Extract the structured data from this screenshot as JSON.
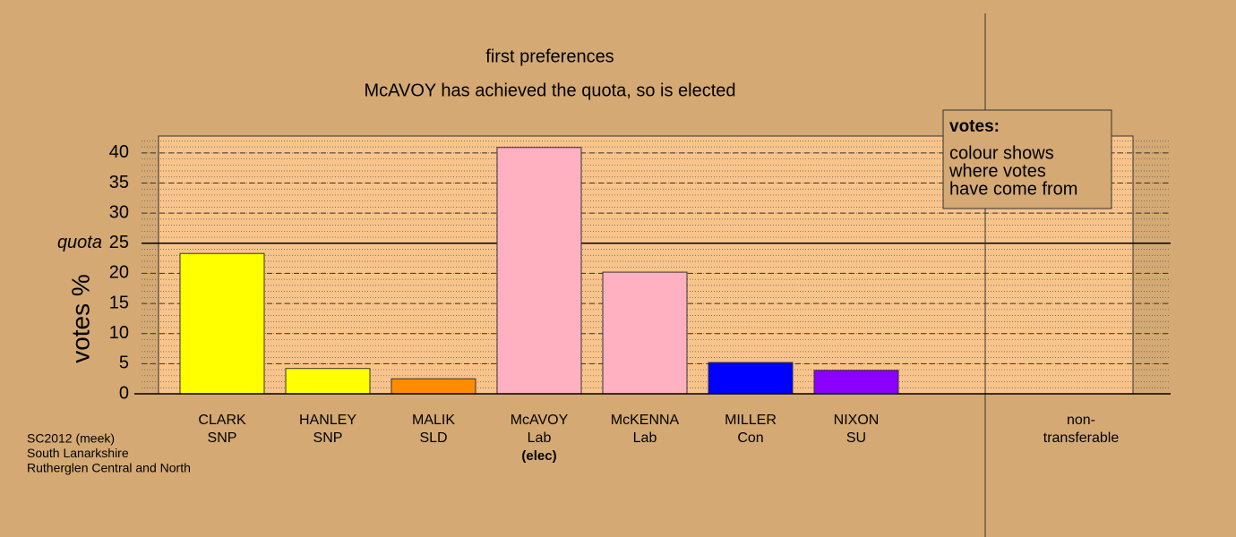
{
  "chart_data": {
    "type": "bar",
    "title": "first preferences",
    "subtitle": "McAVOY has achieved the quota, so is elected",
    "y_label": "votes %",
    "categories": [
      "CLARK",
      "HANLEY",
      "MALIK",
      "McAVOY",
      "McKENNA",
      "MILLER",
      "NIXON"
    ],
    "parties": [
      "SNP",
      "SNP",
      "SLD",
      "Lab",
      "Lab",
      "Con",
      "SU"
    ],
    "values": [
      23.3,
      4.2,
      2.5,
      40.9,
      20.2,
      5.2,
      3.9
    ],
    "colors": [
      "#ffff00",
      "#ffff00",
      "#ff8c00",
      "#ffb0c1",
      "#ffb0c1",
      "#0000ff",
      "#8b00ff"
    ],
    "elected": {
      "category": "McAVOY",
      "text": "(elec)"
    },
    "extra_category": [
      "non-",
      "transferable"
    ],
    "quota": {
      "value": 25,
      "label": "quota"
    },
    "ylim": [
      0,
      42.8
    ],
    "yticks": [
      0,
      5,
      10,
      15,
      20,
      25,
      30,
      35,
      40
    ],
    "minor_grid_step": 1,
    "grid": true,
    "legend": {
      "title": "votes:",
      "lines": [
        "colour shows",
        "where votes",
        "have come from"
      ]
    },
    "footer": [
      "SC2012 (meek)",
      "South Lanarkshire",
      "Rutherglen Central and North"
    ]
  }
}
